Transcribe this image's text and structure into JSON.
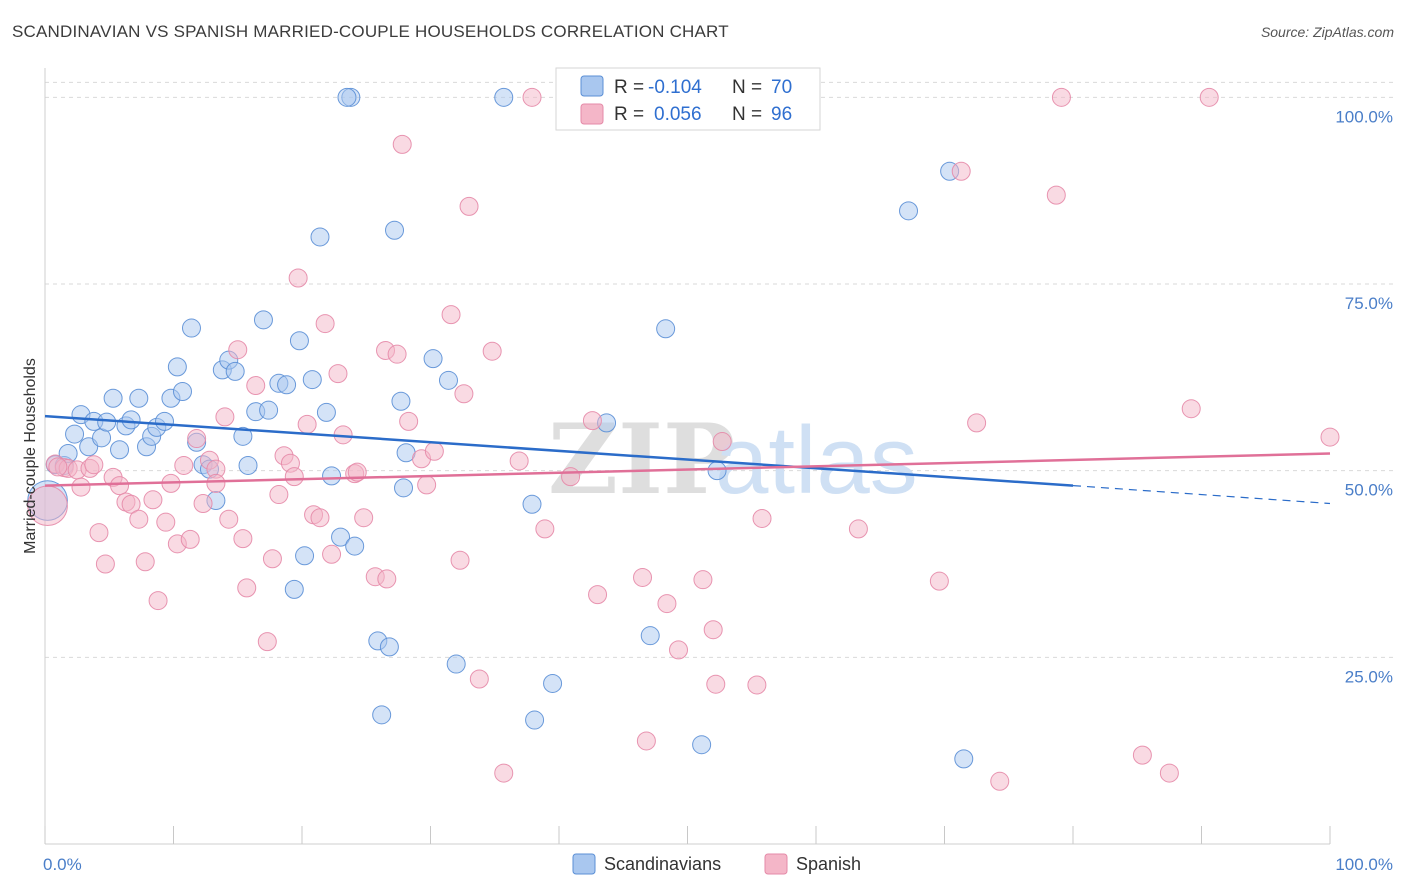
{
  "header": {
    "title": "SCANDINAVIAN VS SPANISH MARRIED-COUPLE HOUSEHOLDS CORRELATION CHART",
    "source": "Source: ZipAtlas.com"
  },
  "watermark": {
    "zip": "ZIP",
    "atlas": "atlas"
  },
  "legend": {
    "rows": [
      {
        "r_label": "R =",
        "r_value": "-0.104",
        "n_label": "N =",
        "n_value": "70",
        "color": "#a9c7ef"
      },
      {
        "r_label": "R =",
        "r_value": "0.056",
        "n_label": "N =",
        "n_value": "96",
        "color": "#f4b6c8"
      }
    ]
  },
  "bottom_legend": {
    "items": [
      {
        "label": "Scandinavians",
        "color": "#a9c7ef"
      },
      {
        "label": "Spanish",
        "color": "#f4b6c8"
      }
    ]
  },
  "colors": {
    "blue_fill": "#a9c7ef",
    "blue_stroke": "#5b8fd6",
    "blue_line": "#2b6cc9",
    "pink_fill": "#f4b6c8",
    "pink_stroke": "#e58aa8",
    "pink_line": "#e07098",
    "grid": "#d9d9d9",
    "tick_text": "#4a7ec8"
  },
  "chart_data": {
    "type": "scatter",
    "title": "SCANDINAVIAN VS SPANISH MARRIED-COUPLE HOUSEHOLDS CORRELATION CHART",
    "xlabel": "",
    "ylabel": "Married-couple Households",
    "xlim": [
      0,
      100
    ],
    "ylim": [
      0,
      105
    ],
    "x_tick_labels": [
      "0.0%",
      "100.0%"
    ],
    "y_ticks": [
      {
        "value": 25,
        "label": "25.0%"
      },
      {
        "value": 50,
        "label": "50.0%"
      },
      {
        "value": 75,
        "label": "75.0%"
      },
      {
        "value": 100,
        "label": "100.0%"
      }
    ],
    "grid": true,
    "legend_position": "top-center",
    "series": [
      {
        "name": "Scandinavians",
        "color": "#a9c7ef",
        "trend": {
          "x": [
            0,
            80,
            100
          ],
          "y": [
            57.3,
            48.0,
            45.6
          ],
          "solid_until": 80
        },
        "points": [
          [
            0.2,
            46,
            2.2
          ],
          [
            0.8,
            50.8,
            1
          ],
          [
            1.5,
            50.7,
            1
          ],
          [
            1.8,
            52.3,
            1
          ],
          [
            2.3,
            54.9,
            1
          ],
          [
            2.8,
            57.5,
            1
          ],
          [
            3.4,
            53.2,
            1
          ],
          [
            3.8,
            56.6,
            1
          ],
          [
            4.4,
            54.4,
            1
          ],
          [
            4.8,
            56.5,
            1
          ],
          [
            5.3,
            59.7,
            1
          ],
          [
            5.8,
            52.8,
            1
          ],
          [
            6.3,
            56,
            1
          ],
          [
            6.7,
            56.8,
            1
          ],
          [
            7.3,
            59.7,
            1
          ],
          [
            7.9,
            53.2,
            1
          ],
          [
            8.3,
            54.6,
            1
          ],
          [
            8.7,
            55.8,
            1
          ],
          [
            9.3,
            56.6,
            1
          ],
          [
            9.8,
            59.7,
            1
          ],
          [
            10.3,
            63.9,
            1
          ],
          [
            10.7,
            60.6,
            1
          ],
          [
            11.4,
            69.1,
            1
          ],
          [
            11.8,
            53.8,
            1
          ],
          [
            12.3,
            50.8,
            1
          ],
          [
            12.8,
            50.2,
            1
          ],
          [
            13.3,
            46,
            1
          ],
          [
            13.8,
            63.5,
            1
          ],
          [
            14.3,
            64.8,
            1
          ],
          [
            14.8,
            63.3,
            1
          ],
          [
            15.4,
            54.6,
            1
          ],
          [
            15.8,
            50.7,
            1
          ],
          [
            16.4,
            57.9,
            1
          ],
          [
            17,
            70.2,
            1
          ],
          [
            17.4,
            58.1,
            1
          ],
          [
            18.2,
            61.7,
            1
          ],
          [
            18.8,
            61.5,
            1
          ],
          [
            19.4,
            34.1,
            1
          ],
          [
            19.8,
            67.4,
            1
          ],
          [
            20.2,
            38.6,
            1
          ],
          [
            20.8,
            62.2,
            1
          ],
          [
            21.4,
            81.3,
            1
          ],
          [
            21.9,
            57.8,
            1
          ],
          [
            22.3,
            49.3,
            1
          ],
          [
            23,
            41.1,
            1
          ],
          [
            24.1,
            39.9,
            1
          ],
          [
            23.8,
            100,
            1
          ],
          [
            23.5,
            100,
            1
          ],
          [
            25.9,
            27.2,
            1
          ],
          [
            26.2,
            17.3,
            1
          ],
          [
            26.8,
            26.4,
            1
          ],
          [
            27.2,
            82.2,
            1
          ],
          [
            27.7,
            59.3,
            1
          ],
          [
            27.9,
            47.7,
            1
          ],
          [
            28.1,
            52.4,
            1
          ],
          [
            30.2,
            65,
            1
          ],
          [
            31.4,
            62.1,
            1
          ],
          [
            32,
            24.1,
            1
          ],
          [
            35.7,
            100,
            1
          ],
          [
            37.9,
            45.5,
            1
          ],
          [
            38.1,
            16.6,
            1
          ],
          [
            39.5,
            21.5,
            1
          ],
          [
            43.7,
            56.4,
            1
          ],
          [
            47.1,
            27.9,
            1
          ],
          [
            48.3,
            69,
            1
          ],
          [
            51.1,
            13.3,
            1
          ],
          [
            52.3,
            50,
            1
          ],
          [
            67.2,
            84.8,
            1
          ],
          [
            70.4,
            90.1,
            1
          ],
          [
            71.5,
            11.4,
            1
          ]
        ]
      },
      {
        "name": "Spanish",
        "color": "#f4b6c8",
        "trend": {
          "x": [
            0,
            100
          ],
          "y": [
            48.0,
            52.3
          ],
          "solid_until": 100
        },
        "points": [
          [
            0.2,
            45.3,
            2.2
          ],
          [
            0.8,
            50.9,
            1
          ],
          [
            1.5,
            50.4,
            1
          ],
          [
            1.8,
            50.3,
            1
          ],
          [
            2.5,
            50.1,
            1
          ],
          [
            2.8,
            47.8,
            1
          ],
          [
            3.5,
            50.3,
            1
          ],
          [
            3.8,
            50.8,
            1
          ],
          [
            4.2,
            41.7,
            1
          ],
          [
            4.7,
            37.5,
            1
          ],
          [
            5.3,
            49.1,
            1
          ],
          [
            5.8,
            48,
            1
          ],
          [
            6.3,
            45.8,
            1
          ],
          [
            6.7,
            45.5,
            1
          ],
          [
            7.3,
            43.5,
            1
          ],
          [
            7.8,
            37.8,
            1
          ],
          [
            8.4,
            46.1,
            1
          ],
          [
            8.8,
            32.6,
            1
          ],
          [
            9.4,
            43.1,
            1
          ],
          [
            9.8,
            48.3,
            1
          ],
          [
            10.3,
            40.2,
            1
          ],
          [
            10.8,
            50.7,
            1
          ],
          [
            11.3,
            40.8,
            1
          ],
          [
            11.8,
            54.3,
            1
          ],
          [
            12.3,
            45.6,
            1
          ],
          [
            12.8,
            51.4,
            1
          ],
          [
            13.3,
            50.2,
            1
          ],
          [
            13.3,
            48.3,
            1
          ],
          [
            14,
            57.2,
            1
          ],
          [
            14.3,
            43.5,
            1
          ],
          [
            15,
            66.2,
            1
          ],
          [
            15.4,
            40.9,
            1
          ],
          [
            15.7,
            34.3,
            1
          ],
          [
            16.4,
            61.4,
            1
          ],
          [
            17.3,
            27.1,
            1
          ],
          [
            17.7,
            38.2,
            1
          ],
          [
            18.2,
            46.8,
            1
          ],
          [
            18.6,
            52,
            1
          ],
          [
            19.1,
            51,
            1
          ],
          [
            19.4,
            49.2,
            1
          ],
          [
            19.7,
            75.8,
            1
          ],
          [
            20.4,
            56.2,
            1
          ],
          [
            20.9,
            44.1,
            1
          ],
          [
            21.4,
            43.7,
            1
          ],
          [
            21.8,
            69.7,
            1
          ],
          [
            22.3,
            38.8,
            1
          ],
          [
            22.8,
            63,
            1
          ],
          [
            23.2,
            54.8,
            1
          ],
          [
            24.1,
            49.6,
            1
          ],
          [
            24.3,
            49.8,
            1
          ],
          [
            24.8,
            43.7,
            1
          ],
          [
            25.7,
            35.8,
            1
          ],
          [
            26.6,
            35.5,
            1
          ],
          [
            26.5,
            66.1,
            1
          ],
          [
            27.4,
            65.6,
            1
          ],
          [
            27.8,
            93.7,
            1
          ],
          [
            28.3,
            56.6,
            1
          ],
          [
            29.3,
            51.6,
            1
          ],
          [
            29.7,
            48.1,
            1
          ],
          [
            30.3,
            52.6,
            1
          ],
          [
            31.6,
            70.9,
            1
          ],
          [
            32.3,
            38,
            1
          ],
          [
            32.6,
            60.3,
            1
          ],
          [
            33,
            85.4,
            1
          ],
          [
            33.8,
            22.1,
            1
          ],
          [
            34.8,
            66,
            1
          ],
          [
            35.7,
            9.5,
            1
          ],
          [
            36.9,
            51.3,
            1
          ],
          [
            37.9,
            100,
            1
          ],
          [
            38.9,
            42.2,
            1
          ],
          [
            40.9,
            49.2,
            1
          ],
          [
            42.6,
            56.7,
            1
          ],
          [
            43,
            33.4,
            1
          ],
          [
            46.8,
            13.8,
            1
          ],
          [
            46.5,
            35.7,
            1
          ],
          [
            48.4,
            32.2,
            1
          ],
          [
            49.3,
            26,
            1
          ],
          [
            51.2,
            35.4,
            1
          ],
          [
            52,
            28.7,
            1
          ],
          [
            52.2,
            21.4,
            1
          ],
          [
            52.7,
            53.9,
            1
          ],
          [
            55.4,
            21.3,
            1
          ],
          [
            55.8,
            43.6,
            1
          ],
          [
            63.3,
            42.2,
            1
          ],
          [
            69.6,
            35.2,
            1
          ],
          [
            71.3,
            90.1,
            1
          ],
          [
            72.5,
            56.4,
            1
          ],
          [
            74.3,
            8.4,
            1
          ],
          [
            78.7,
            86.9,
            1
          ],
          [
            79.1,
            100,
            1
          ],
          [
            85.4,
            11.9,
            1
          ],
          [
            87.5,
            9.5,
            1
          ],
          [
            90.6,
            100,
            1
          ],
          [
            89.2,
            58.3,
            1
          ],
          [
            100,
            54.5,
            1
          ],
          [
            1,
            50.5,
            1
          ]
        ]
      }
    ]
  }
}
